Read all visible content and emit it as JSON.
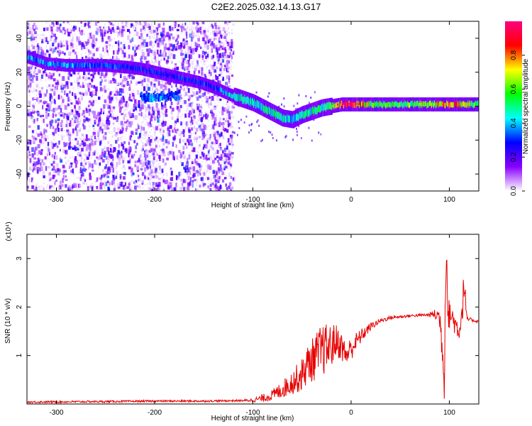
{
  "page_title": "C2E2.2025.032.14.13.G17",
  "chart_data": [
    {
      "type": "heatmap",
      "title": "C2E2.2025.032.14.13.G17",
      "xlabel": "Height of straight line (km)",
      "ylabel": "Frequency (Hz)",
      "xlim": [
        -330,
        130
      ],
      "ylim": [
        -50,
        50
      ],
      "xticks": [
        -300,
        -200,
        -100,
        0,
        100
      ],
      "yticks": [
        -40,
        -20,
        0,
        20,
        40
      ],
      "grid": false,
      "colorbar": {
        "label": "Normalized spectral amplitude",
        "range": [
          0,
          1
        ],
        "ticks": [
          "0.0",
          "0.2",
          "0.4",
          "0.6",
          "0.8"
        ],
        "colors": [
          "#ffffff",
          "#8a00ff",
          "#0000ff",
          "#00ffff",
          "#00ff00",
          "#ffff00",
          "#ff0000",
          "#ff0080"
        ]
      },
      "ridge": {
        "x": [
          -330,
          -310,
          -290,
          -270,
          -250,
          -230,
          -215,
          -200,
          -185,
          -170,
          -155,
          -140,
          -125,
          -110,
          -100,
          -90,
          -80,
          -70,
          -60,
          -50,
          -40,
          -30,
          -20,
          -10,
          0,
          20,
          40,
          60,
          80,
          100,
          115,
          130
        ],
        "y": [
          29,
          25,
          24,
          24,
          24,
          23,
          22,
          20,
          18,
          16,
          14,
          11,
          7,
          4,
          2,
          -1,
          -4,
          -7,
          -8,
          -5,
          -3,
          -1,
          0,
          1,
          1,
          1,
          1,
          1,
          1,
          1,
          1,
          1
        ],
        "amplitude": [
          0.35,
          0.38,
          0.38,
          0.35,
          0.35,
          0.3,
          0.3,
          0.3,
          0.28,
          0.3,
          0.3,
          0.3,
          0.45,
          0.45,
          0.45,
          0.45,
          0.5,
          0.45,
          0.4,
          0.45,
          0.5,
          0.5,
          0.55,
          0.9,
          0.95,
          0.6,
          0.55,
          0.6,
          0.65,
          0.85,
          0.7,
          0.55
        ]
      },
      "secondary_ridge": {
        "x": [
          -215,
          -205,
          -195,
          -185,
          -175
        ],
        "y": [
          5,
          4,
          5,
          5,
          6
        ],
        "amplitude": [
          0.3,
          0.35,
          0.35,
          0.3,
          0.3
        ]
      },
      "noise_region": {
        "x": [
          -330,
          -120
        ],
        "y": [
          -50,
          50
        ]
      }
    },
    {
      "type": "line",
      "xlabel": "Height of straight line (km)",
      "ylabel": "SNR (10 * v/v)",
      "y_multiplier": "(x10⁴)",
      "xlim": [
        -330,
        130
      ],
      "ylim": [
        0,
        3.5
      ],
      "xticks": [
        -300,
        -200,
        -100,
        0,
        100
      ],
      "yticks": [
        1,
        2,
        3
      ],
      "grid": false,
      "series": [
        {
          "color": "#e60000",
          "x": [
            -330,
            -250,
            -200,
            -150,
            -110,
            -100,
            -90,
            -80,
            -70,
            -60,
            -50,
            -45,
            -40,
            -35,
            -30,
            -25,
            -20,
            -15,
            -10,
            -5,
            0,
            10,
            20,
            30,
            40,
            50,
            60,
            70,
            80,
            85,
            90,
            93,
            95,
            96,
            97,
            99,
            100,
            105,
            110,
            113,
            115,
            118,
            120,
            125,
            130
          ],
          "y": [
            0.04,
            0.05,
            0.06,
            0.06,
            0.07,
            0.08,
            0.12,
            0.18,
            0.3,
            0.45,
            0.6,
            0.8,
            0.9,
            1.0,
            1.1,
            1.15,
            1.2,
            1.3,
            1.2,
            1.0,
            1.15,
            1.4,
            1.6,
            1.72,
            1.78,
            1.8,
            1.82,
            1.83,
            1.84,
            1.85,
            1.8,
            1.2,
            0.3,
            2.6,
            3.3,
            1.6,
            1.9,
            1.7,
            1.5,
            1.9,
            2.5,
            1.7,
            1.75,
            1.72,
            1.7
          ],
          "noise": [
            0.02,
            0.02,
            0.02,
            0.02,
            0.02,
            0.04,
            0.08,
            0.12,
            0.18,
            0.25,
            0.35,
            0.4,
            0.45,
            0.5,
            0.55,
            0.5,
            0.45,
            0.35,
            0.3,
            0.25,
            0.25,
            0.15,
            0.08,
            0.05,
            0.04,
            0.03,
            0.03,
            0.03,
            0.04,
            0.1,
            0.25,
            0.4,
            0.3,
            0.6,
            0.4,
            0.3,
            0.35,
            0.25,
            0.2,
            0.3,
            0.4,
            0.1,
            0.04,
            0.03,
            0.03
          ]
        }
      ]
    }
  ]
}
